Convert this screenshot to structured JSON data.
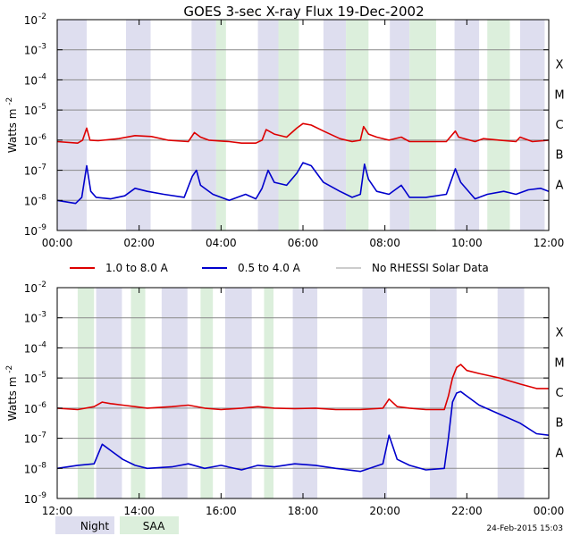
{
  "title": "GOES 3-sec X-ray Flux   19-Dec-2002",
  "footer_date": "24-Feb-2015 15:03",
  "colors": {
    "long": "#dd0000",
    "short": "#0000cc",
    "nodata": "#999999",
    "night": "#dedeef",
    "saa": "#dcefdc",
    "grid": "#8a8a8a"
  },
  "legend": {
    "long": "1.0 to 8.0 A",
    "short": "0.5 to 4.0 A",
    "nodata": "No RHESSI Solar Data"
  },
  "bottom_legend": {
    "night": "Night",
    "saa": "SAA"
  },
  "ytick_mantissa": "10",
  "ylabel": {
    "base": "Watts m",
    "sup": "-2"
  },
  "chart_data": [
    {
      "type": "line",
      "xlabels": [
        "00:00",
        "02:00",
        "04:00",
        "06:00",
        "08:00",
        "10:00",
        "12:00"
      ],
      "xlim": [
        0,
        12
      ],
      "ylim_exp": [
        -9,
        -2
      ],
      "log_y": true,
      "ytick_exps": [
        "-9",
        "-8",
        "-7",
        "-6",
        "-5",
        "-4",
        "-3",
        "-2"
      ],
      "classes": [
        {
          "label": "A",
          "exp": -8
        },
        {
          "label": "B",
          "exp": -7
        },
        {
          "label": "C",
          "exp": -6
        },
        {
          "label": "M",
          "exp": -5
        },
        {
          "label": "X",
          "exp": -4
        }
      ],
      "night": [
        [
          0.0,
          0.72
        ],
        [
          1.68,
          2.28
        ],
        [
          3.28,
          3.88
        ],
        [
          4.9,
          5.4
        ],
        [
          6.5,
          7.05
        ],
        [
          8.12,
          8.6
        ],
        [
          9.7,
          10.3
        ],
        [
          11.3,
          11.9
        ]
      ],
      "saa": [
        [
          3.88,
          4.12
        ],
        [
          5.4,
          5.9
        ],
        [
          7.05,
          7.6
        ],
        [
          8.6,
          9.25
        ],
        [
          10.5,
          11.05
        ]
      ],
      "series": [
        {
          "name": "1.0 to 8.0 A",
          "color_key": "long",
          "points": [
            [
              0.0,
              -6.05
            ],
            [
              0.5,
              -6.1
            ],
            [
              0.62,
              -6.0
            ],
            [
              0.72,
              -5.6
            ],
            [
              0.8,
              -6.0
            ],
            [
              1.0,
              -6.02
            ],
            [
              1.5,
              -5.95
            ],
            [
              1.9,
              -5.85
            ],
            [
              2.3,
              -5.88
            ],
            [
              2.7,
              -6.0
            ],
            [
              3.2,
              -6.05
            ],
            [
              3.35,
              -5.75
            ],
            [
              3.5,
              -5.9
            ],
            [
              3.7,
              -6.0
            ],
            [
              4.2,
              -6.05
            ],
            [
              4.5,
              -6.1
            ],
            [
              4.85,
              -6.1
            ],
            [
              5.0,
              -6.0
            ],
            [
              5.1,
              -5.65
            ],
            [
              5.3,
              -5.8
            ],
            [
              5.6,
              -5.9
            ],
            [
              5.85,
              -5.6
            ],
            [
              6.0,
              -5.45
            ],
            [
              6.2,
              -5.5
            ],
            [
              6.5,
              -5.7
            ],
            [
              6.9,
              -5.95
            ],
            [
              7.2,
              -6.05
            ],
            [
              7.4,
              -6.0
            ],
            [
              7.48,
              -5.55
            ],
            [
              7.6,
              -5.8
            ],
            [
              7.8,
              -5.9
            ],
            [
              8.1,
              -6.0
            ],
            [
              8.4,
              -5.9
            ],
            [
              8.6,
              -6.05
            ],
            [
              9.0,
              -6.05
            ],
            [
              9.5,
              -6.05
            ],
            [
              9.72,
              -5.7
            ],
            [
              9.8,
              -5.9
            ],
            [
              10.2,
              -6.05
            ],
            [
              10.4,
              -5.95
            ],
            [
              10.8,
              -6.0
            ],
            [
              11.2,
              -6.05
            ],
            [
              11.3,
              -5.9
            ],
            [
              11.6,
              -6.05
            ],
            [
              12.0,
              -6.0
            ]
          ]
        },
        {
          "name": "0.5 to 4.0 A",
          "color_key": "short",
          "points": [
            [
              0.0,
              -8.0
            ],
            [
              0.45,
              -8.1
            ],
            [
              0.6,
              -7.9
            ],
            [
              0.72,
              -6.85
            ],
            [
              0.82,
              -7.7
            ],
            [
              0.95,
              -7.9
            ],
            [
              1.3,
              -7.95
            ],
            [
              1.65,
              -7.85
            ],
            [
              1.9,
              -7.6
            ],
            [
              2.2,
              -7.7
            ],
            [
              2.6,
              -7.8
            ],
            [
              3.1,
              -7.9
            ],
            [
              3.3,
              -7.2
            ],
            [
              3.4,
              -7.0
            ],
            [
              3.5,
              -7.5
            ],
            [
              3.8,
              -7.8
            ],
            [
              4.2,
              -8.0
            ],
            [
              4.6,
              -7.8
            ],
            [
              4.85,
              -7.95
            ],
            [
              5.0,
              -7.6
            ],
            [
              5.15,
              -7.0
            ],
            [
              5.3,
              -7.4
            ],
            [
              5.6,
              -7.5
            ],
            [
              5.85,
              -7.1
            ],
            [
              6.0,
              -6.75
            ],
            [
              6.2,
              -6.85
            ],
            [
              6.5,
              -7.4
            ],
            [
              6.9,
              -7.7
            ],
            [
              7.2,
              -7.9
            ],
            [
              7.4,
              -7.8
            ],
            [
              7.5,
              -6.8
            ],
            [
              7.6,
              -7.3
            ],
            [
              7.8,
              -7.7
            ],
            [
              8.1,
              -7.8
            ],
            [
              8.4,
              -7.5
            ],
            [
              8.6,
              -7.9
            ],
            [
              9.0,
              -7.9
            ],
            [
              9.5,
              -7.8
            ],
            [
              9.72,
              -6.95
            ],
            [
              9.85,
              -7.4
            ],
            [
              10.2,
              -7.95
            ],
            [
              10.5,
              -7.8
            ],
            [
              10.9,
              -7.7
            ],
            [
              11.2,
              -7.8
            ],
            [
              11.5,
              -7.65
            ],
            [
              11.8,
              -7.6
            ],
            [
              12.0,
              -7.7
            ]
          ]
        }
      ]
    },
    {
      "type": "line",
      "xlabels": [
        "12:00",
        "14:00",
        "16:00",
        "18:00",
        "20:00",
        "22:00",
        "00:00"
      ],
      "xlim": [
        12,
        24
      ],
      "ylim_exp": [
        -9,
        -2
      ],
      "log_y": true,
      "ytick_exps": [
        "-9",
        "-8",
        "-7",
        "-6",
        "-5",
        "-4",
        "-3",
        "-2"
      ],
      "classes": [
        {
          "label": "A",
          "exp": -8
        },
        {
          "label": "B",
          "exp": -7
        },
        {
          "label": "C",
          "exp": -6
        },
        {
          "label": "M",
          "exp": -5
        },
        {
          "label": "X",
          "exp": -4
        }
      ],
      "night": [
        [
          12.95,
          13.58
        ],
        [
          14.55,
          15.18
        ],
        [
          16.1,
          16.75
        ],
        [
          17.75,
          18.35
        ],
        [
          19.45,
          20.05
        ],
        [
          21.1,
          21.75
        ],
        [
          22.75,
          23.4
        ]
      ],
      "saa": [
        [
          12.5,
          12.9
        ],
        [
          13.8,
          14.15
        ],
        [
          15.5,
          15.8
        ],
        [
          17.05,
          17.28
        ]
      ],
      "series": [
        {
          "name": "1.0 to 8.0 A",
          "color_key": "long",
          "points": [
            [
              12.0,
              -6.0
            ],
            [
              12.5,
              -6.05
            ],
            [
              12.9,
              -5.95
            ],
            [
              13.1,
              -5.8
            ],
            [
              13.3,
              -5.85
            ],
            [
              13.6,
              -5.9
            ],
            [
              13.9,
              -5.95
            ],
            [
              14.2,
              -6.0
            ],
            [
              14.8,
              -5.95
            ],
            [
              15.2,
              -5.9
            ],
            [
              15.6,
              -6.0
            ],
            [
              16.0,
              -6.05
            ],
            [
              16.5,
              -6.0
            ],
            [
              16.9,
              -5.95
            ],
            [
              17.3,
              -6.0
            ],
            [
              17.8,
              -6.02
            ],
            [
              18.3,
              -6.0
            ],
            [
              18.8,
              -6.05
            ],
            [
              19.4,
              -6.05
            ],
            [
              19.95,
              -6.0
            ],
            [
              20.1,
              -5.7
            ],
            [
              20.3,
              -5.95
            ],
            [
              20.6,
              -6.0
            ],
            [
              21.0,
              -6.05
            ],
            [
              21.45,
              -6.05
            ],
            [
              21.55,
              -5.6
            ],
            [
              21.65,
              -5.0
            ],
            [
              21.75,
              -4.65
            ],
            [
              21.85,
              -4.55
            ],
            [
              22.0,
              -4.75
            ],
            [
              22.3,
              -4.85
            ],
            [
              22.8,
              -5.0
            ],
            [
              23.3,
              -5.2
            ],
            [
              23.7,
              -5.35
            ],
            [
              24.0,
              -5.35
            ]
          ]
        },
        {
          "name": "0.5 to 4.0 A",
          "color_key": "short",
          "points": [
            [
              12.0,
              -8.0
            ],
            [
              12.5,
              -7.9
            ],
            [
              12.9,
              -7.85
            ],
            [
              13.1,
              -7.2
            ],
            [
              13.3,
              -7.4
            ],
            [
              13.6,
              -7.7
            ],
            [
              13.9,
              -7.9
            ],
            [
              14.2,
              -8.0
            ],
            [
              14.8,
              -7.95
            ],
            [
              15.2,
              -7.85
            ],
            [
              15.6,
              -8.0
            ],
            [
              16.0,
              -7.9
            ],
            [
              16.5,
              -8.05
            ],
            [
              16.9,
              -7.9
            ],
            [
              17.3,
              -7.95
            ],
            [
              17.8,
              -7.85
            ],
            [
              18.3,
              -7.9
            ],
            [
              18.8,
              -8.0
            ],
            [
              19.4,
              -8.1
            ],
            [
              19.95,
              -7.85
            ],
            [
              20.1,
              -6.9
            ],
            [
              20.3,
              -7.7
            ],
            [
              20.6,
              -7.9
            ],
            [
              21.0,
              -8.05
            ],
            [
              21.45,
              -8.0
            ],
            [
              21.55,
              -7.0
            ],
            [
              21.65,
              -5.8
            ],
            [
              21.75,
              -5.5
            ],
            [
              21.85,
              -5.45
            ],
            [
              22.0,
              -5.6
            ],
            [
              22.3,
              -5.9
            ],
            [
              22.8,
              -6.2
            ],
            [
              23.3,
              -6.5
            ],
            [
              23.7,
              -6.85
            ],
            [
              24.0,
              -6.9
            ]
          ]
        }
      ]
    }
  ]
}
